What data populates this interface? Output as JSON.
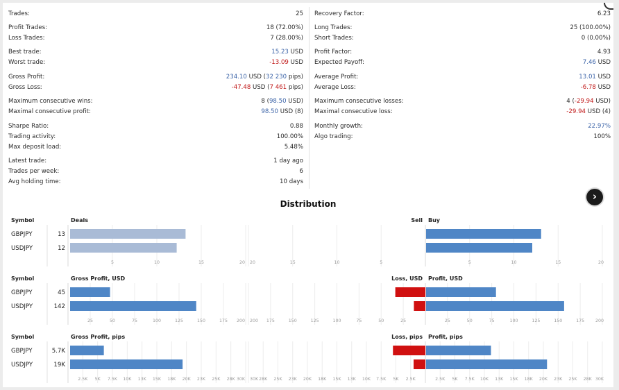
{
  "stats": {
    "left": [
      {
        "label": "Trades:",
        "parts": [
          {
            "t": "25"
          }
        ]
      },
      {
        "label": "Profit Trades:",
        "parts": [
          {
            "t": "18 (72.00%)"
          }
        ]
      },
      {
        "label": "Loss Trades:",
        "parts": [
          {
            "t": "7 (28.00%)"
          }
        ]
      },
      {
        "label": "Best trade:",
        "parts": [
          {
            "t": "15.23",
            "c": "blue"
          },
          {
            "t": " USD"
          }
        ]
      },
      {
        "label": "Worst trade:",
        "parts": [
          {
            "t": "-13.09",
            "c": "red"
          },
          {
            "t": " USD"
          }
        ]
      },
      {
        "label": "Gross Profit:",
        "parts": [
          {
            "t": "234.10",
            "c": "blue"
          },
          {
            "t": " USD ("
          },
          {
            "t": "32 230",
            "c": "blue"
          },
          {
            "t": " pips)"
          }
        ]
      },
      {
        "label": "Gross Loss:",
        "parts": [
          {
            "t": "-47.48",
            "c": "red"
          },
          {
            "t": " USD ("
          },
          {
            "t": "7 461",
            "c": "red"
          },
          {
            "t": " pips)"
          }
        ]
      },
      {
        "label": "Maximum consecutive wins:",
        "parts": [
          {
            "t": "8 ("
          },
          {
            "t": "98.50",
            "c": "blue"
          },
          {
            "t": " USD)"
          }
        ]
      },
      {
        "label": "Maximal consecutive profit:",
        "parts": [
          {
            "t": "98.50",
            "c": "blue"
          },
          {
            "t": " USD (8)"
          }
        ]
      },
      {
        "label": "Sharpe Ratio:",
        "parts": [
          {
            "t": "0.88"
          }
        ]
      },
      {
        "label": "Trading activity:",
        "parts": [
          {
            "t": "100.00%"
          }
        ]
      },
      {
        "label": "Max deposit load:",
        "parts": [
          {
            "t": "5.48%"
          }
        ]
      },
      {
        "label": "Latest trade:",
        "parts": [
          {
            "t": "1 day ago"
          }
        ]
      },
      {
        "label": "Trades per week:",
        "parts": [
          {
            "t": "6"
          }
        ]
      },
      {
        "label": "Avg holding time:",
        "parts": [
          {
            "t": "10 days"
          }
        ]
      }
    ],
    "right": [
      {
        "label": "Recovery Factor:",
        "parts": [
          {
            "t": "6.23"
          }
        ]
      },
      {
        "label": "Long Trades:",
        "parts": [
          {
            "t": "25 (100.00%)"
          }
        ]
      },
      {
        "label": "Short Trades:",
        "parts": [
          {
            "t": "0 (0.00%)"
          }
        ]
      },
      {
        "label": "Profit Factor:",
        "parts": [
          {
            "t": "4.93"
          }
        ]
      },
      {
        "label": "Expected Payoff:",
        "parts": [
          {
            "t": "7.46",
            "c": "blue"
          },
          {
            "t": " USD"
          }
        ]
      },
      {
        "label": "Average Profit:",
        "parts": [
          {
            "t": "13.01",
            "c": "blue"
          },
          {
            "t": " USD"
          }
        ]
      },
      {
        "label": "Average Loss:",
        "parts": [
          {
            "t": "-6.78",
            "c": "red"
          },
          {
            "t": " USD"
          }
        ]
      },
      {
        "label": "Maximum consecutive losses:",
        "parts": [
          {
            "t": "4 ("
          },
          {
            "t": "-29.94",
            "c": "red"
          },
          {
            "t": " USD)"
          }
        ]
      },
      {
        "label": "Maximal consecutive loss:",
        "parts": [
          {
            "t": "-29.94",
            "c": "red"
          },
          {
            "t": " USD (4)"
          }
        ]
      },
      {
        "label": "Monthly growth:",
        "parts": [
          {
            "t": "22.97%",
            "c": "blue"
          }
        ]
      },
      {
        "label": "Algo trading:",
        "parts": [
          {
            "t": "100%"
          }
        ]
      }
    ]
  },
  "distribution_title": "Distribution",
  "colors": {
    "deals": "#a9bbd6",
    "blue": "#4f86c6",
    "red": "#d01010"
  },
  "chart_data": [
    {
      "type": "bar",
      "symbol_header": "Symbol",
      "categories": [
        "GBPJPY",
        "USDJPY"
      ],
      "left": {
        "title": "Deals",
        "values": [
          13,
          12
        ],
        "labels": [
          "13",
          "12"
        ],
        "xlim": [
          0,
          20
        ],
        "ticks": [
          5,
          10,
          15,
          20
        ],
        "tick_labels": [
          "5",
          "10",
          "15",
          "20"
        ],
        "color": "deals"
      },
      "mid": {
        "title": "Sell",
        "values": [
          0,
          0
        ],
        "xlim": [
          0,
          20
        ],
        "ticks": [
          20,
          15,
          10,
          5
        ],
        "tick_labels": [
          "20",
          "15",
          "10",
          "5"
        ]
      },
      "right": {
        "title": "Buy",
        "values": [
          13,
          12
        ],
        "xlim": [
          0,
          20
        ],
        "ticks": [
          5,
          10,
          15,
          20
        ],
        "tick_labels": [
          "5",
          "10",
          "15",
          "20"
        ]
      }
    },
    {
      "type": "bar",
      "symbol_header": "Symbol",
      "categories": [
        "GBPJPY",
        "USDJPY"
      ],
      "left": {
        "title": "Gross Profit, USD",
        "values": [
          45,
          142
        ],
        "labels": [
          "45",
          "142"
        ],
        "xlim": [
          0,
          200
        ],
        "ticks": [
          25,
          50,
          75,
          100,
          125,
          150,
          175,
          200
        ],
        "tick_labels": [
          "25",
          "50",
          "75",
          "100",
          "125",
          "150",
          "175",
          "200"
        ],
        "color": "blue"
      },
      "mid": {
        "title": "Loss, USD",
        "values": [
          34,
          13
        ],
        "xlim": [
          0,
          200
        ],
        "ticks": [
          200,
          175,
          150,
          125,
          100,
          75,
          50,
          25
        ],
        "tick_labels": [
          "200",
          "175",
          "150",
          "125",
          "100",
          "75",
          "50",
          "25"
        ]
      },
      "right": {
        "title": "Profit, USD",
        "values": [
          79,
          156
        ],
        "xlim": [
          0,
          200
        ],
        "ticks": [
          25,
          50,
          75,
          100,
          125,
          150,
          175,
          200
        ],
        "tick_labels": [
          "25",
          "50",
          "75",
          "100",
          "125",
          "150",
          "175",
          "200"
        ]
      }
    },
    {
      "type": "bar",
      "symbol_header": "Symbol",
      "categories": [
        "GBPJPY",
        "USDJPY"
      ],
      "left": {
        "title": "Gross Profit, pips",
        "values": [
          5700,
          19000
        ],
        "labels": [
          "5.7K",
          "19K"
        ],
        "xlim": [
          0,
          30000
        ],
        "ticks": [
          2500,
          5000,
          7500,
          10000,
          12500,
          15000,
          17500,
          20000,
          22500,
          25000,
          27500,
          30000
        ],
        "tick_labels": [
          "2.5K",
          "5K",
          "7.5K",
          "10K",
          "13K",
          "15K",
          "18K",
          "20K",
          "23K",
          "25K",
          "28K",
          "30K"
        ],
        "color": "blue"
      },
      "mid": {
        "title": "Loss, pips",
        "values": [
          5500,
          2000
        ],
        "xlim": [
          0,
          30000
        ],
        "ticks": [
          30000,
          27500,
          25000,
          22500,
          20000,
          17500,
          15000,
          12500,
          10000,
          7500,
          5000,
          2500
        ],
        "tick_labels": [
          "30K",
          "28K",
          "25K",
          "23K",
          "20K",
          "18K",
          "15K",
          "13K",
          "10K",
          "7.5K",
          "5K",
          "2.5K"
        ]
      },
      "right": {
        "title": "Profit, pips",
        "values": [
          11000,
          20500
        ],
        "xlim": [
          0,
          30000
        ],
        "ticks": [
          2500,
          5000,
          7500,
          10000,
          12500,
          15000,
          17500,
          20000,
          22500,
          25000,
          27500,
          30000
        ],
        "tick_labels": [
          "2.5K",
          "5K",
          "7.5K",
          "10K",
          "13K",
          "15K",
          "18K",
          "20K",
          "23K",
          "25K",
          "28K",
          "30K"
        ]
      }
    }
  ]
}
